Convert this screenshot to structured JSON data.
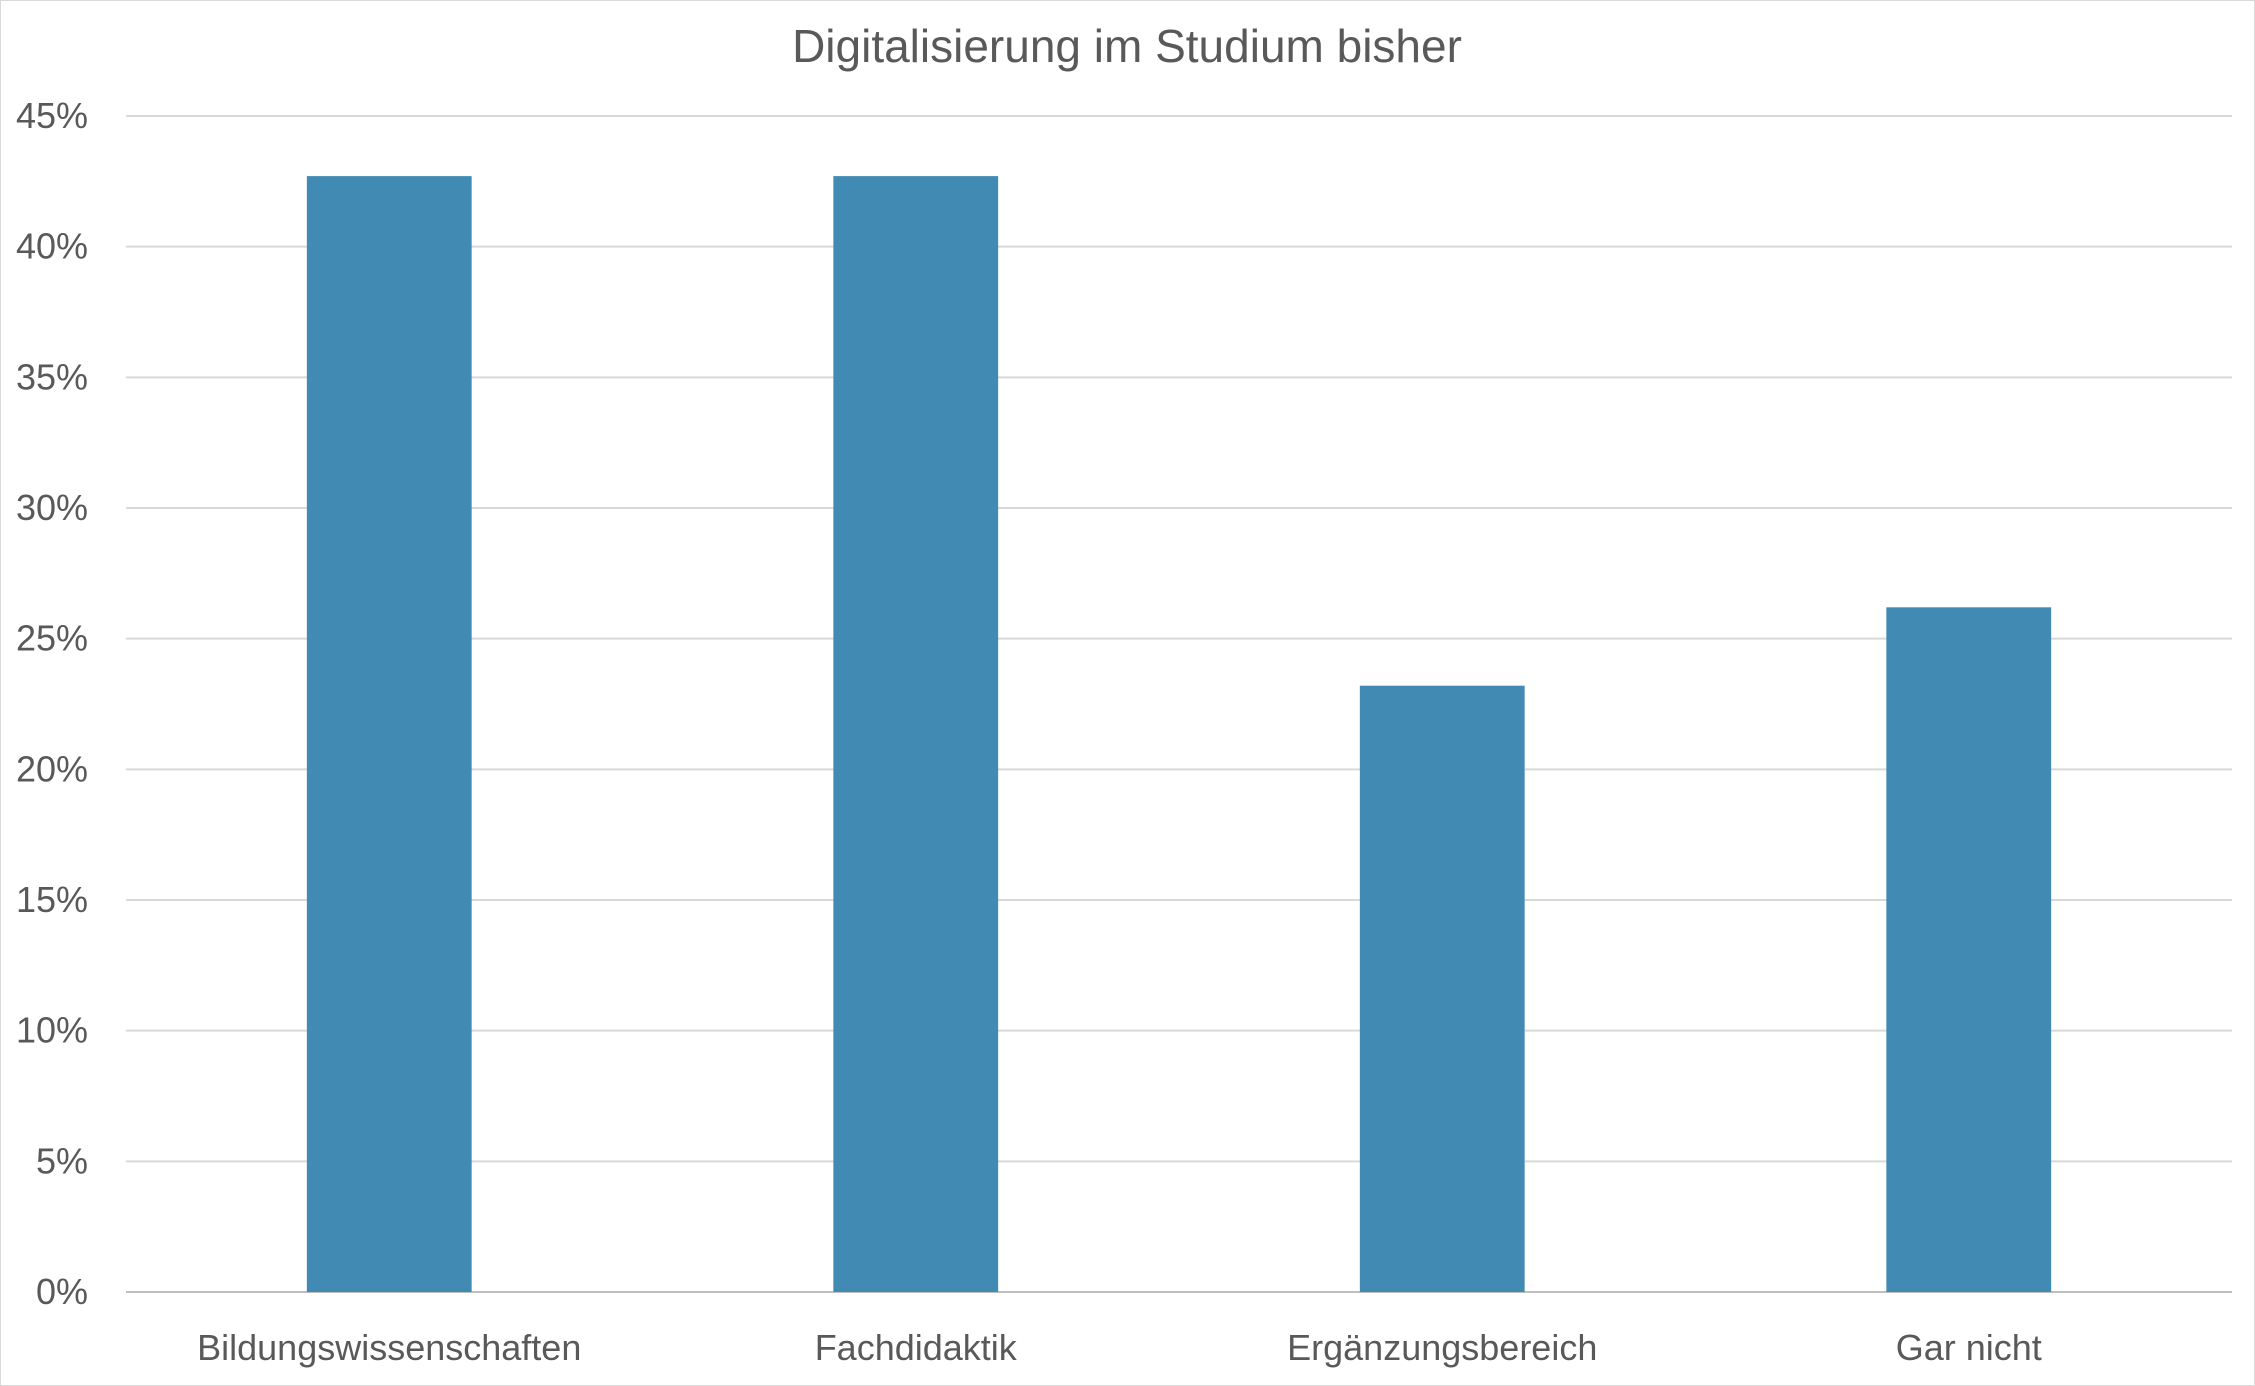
{
  "chart_data": {
    "type": "bar",
    "title": "Digitalisierung im Studium bisher",
    "categories": [
      "Bildungswissenschaften",
      "Fachdidaktik",
      "Ergänzungsbereich",
      "Gar nicht"
    ],
    "values": [
      42.7,
      42.7,
      23.2,
      26.2
    ],
    "yticks": [
      "0%",
      "5%",
      "10%",
      "15%",
      "20%",
      "25%",
      "30%",
      "35%",
      "40%",
      "45%"
    ],
    "ylim": [
      0,
      45
    ],
    "xlabel": "",
    "ylabel": "",
    "grid": true,
    "legend": "none",
    "bar_color": "#418ab3"
  }
}
